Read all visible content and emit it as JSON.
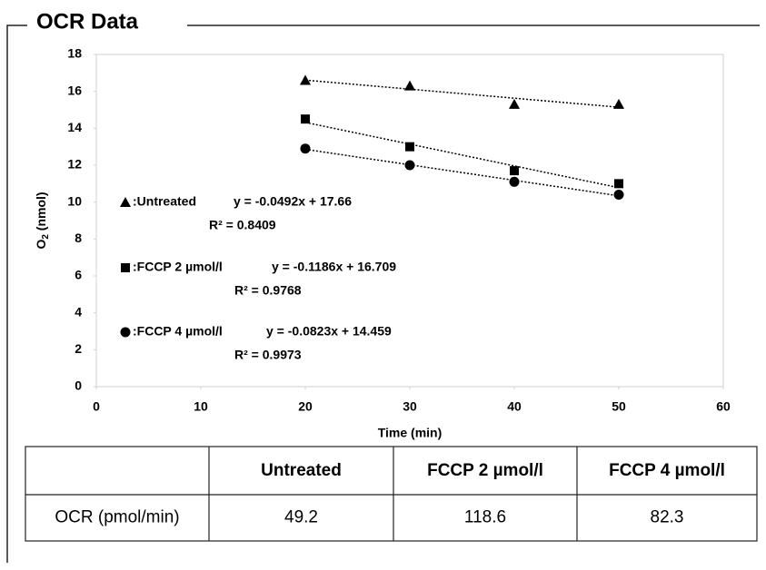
{
  "panel_title": "OCR Data",
  "chart_data": {
    "type": "scatter",
    "x_label": "Time (min)",
    "y_label": {
      "main": "O",
      "sub": "2",
      "rest": " (nmol)"
    },
    "xlim": [
      0,
      60
    ],
    "xticks": [
      0,
      10,
      20,
      30,
      40,
      50,
      60
    ],
    "ylim": [
      0,
      18
    ],
    "yticks": [
      0,
      2,
      4,
      6,
      8,
      10,
      12,
      14,
      16,
      18
    ],
    "trendline": "dotted",
    "series": [
      {
        "name": ":Untreated",
        "marker": "triangle",
        "color": "#000000",
        "x": [
          20,
          30,
          40,
          50
        ],
        "values": [
          16.6,
          16.3,
          15.3,
          15.3
        ],
        "equation": "y = -0.0492x + 17.66",
        "r2": "R² = 0.8409"
      },
      {
        "name": ":FCCP 2 µmol/l",
        "marker": "square",
        "color": "#000000",
        "x": [
          20,
          30,
          40,
          50
        ],
        "values": [
          14.5,
          13.0,
          11.7,
          11.0
        ],
        "equation": "y = -0.1186x + 16.709",
        "r2": "R² = 0.9768"
      },
      {
        "name": ":FCCP 4 µmol/l",
        "marker": "circle",
        "color": "#000000",
        "x": [
          20,
          30,
          40,
          50
        ],
        "values": [
          12.9,
          12.0,
          11.1,
          10.4
        ],
        "equation": "y = -0.0823x + 14.459",
        "r2": "R² = 0.9973"
      }
    ]
  },
  "table": {
    "header": [
      "Untreated",
      "FCCP 2 µmol/l",
      "FCCP 4 µmol/l"
    ],
    "rows": [
      [
        "OCR (pmol/min)",
        49.2,
        118.6,
        82.3
      ]
    ]
  }
}
